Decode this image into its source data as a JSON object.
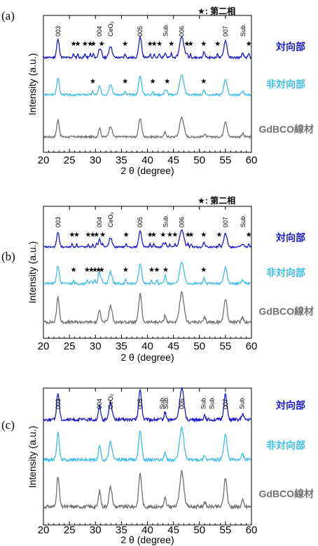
{
  "chart_data": [
    {
      "panel": "(a)",
      "type": "line",
      "legend_note": "★: 第二相",
      "xlabel": "2 θ (degree)",
      "ylabel": "Intensity (a.u.)",
      "xlim": [
        20,
        60
      ],
      "x_ticks": [
        20,
        25,
        30,
        35,
        40,
        45,
        50,
        55,
        60
      ],
      "peak_labels": [
        {
          "x": 22.8,
          "text": "003"
        },
        {
          "x": 30.8,
          "text": "004"
        },
        {
          "x": 32.9,
          "text": "CeO₂"
        },
        {
          "x": 38.6,
          "text": "005"
        },
        {
          "x": 43.5,
          "text": "Sub."
        },
        {
          "x": 46.6,
          "text": "006"
        },
        {
          "x": 55.0,
          "text": "007"
        },
        {
          "x": 58.4,
          "text": "Sub."
        }
      ],
      "series": [
        {
          "name": "対向部",
          "color": "#1a1acc",
          "stars": [
            25.8,
            26.6,
            28.0,
            29.0,
            29.6,
            31.2,
            35.7,
            40.5,
            41.3,
            42.3,
            44.6,
            47.6,
            48.3,
            50.8,
            53.5,
            59.5
          ]
        },
        {
          "name": "非対向部",
          "color": "#3fbde6",
          "stars": [
            29.5,
            35.7,
            41.0,
            43.8,
            50.8
          ]
        },
        {
          "name": "GdBCO線材",
          "color": "#707070",
          "stars": []
        }
      ]
    },
    {
      "panel": "(b)",
      "type": "line",
      "legend_note": "★: 第二相",
      "xlabel": "2 θ (degree)",
      "ylabel": "Intensity (a.u.)",
      "xlim": [
        20,
        60
      ],
      "x_ticks": [
        20,
        25,
        30,
        35,
        40,
        45,
        50,
        55,
        60
      ],
      "peak_labels": [
        {
          "x": 22.8,
          "text": "003"
        },
        {
          "x": 30.8,
          "text": "004"
        },
        {
          "x": 32.9,
          "text": "CeO₂"
        },
        {
          "x": 38.6,
          "text": "005"
        },
        {
          "x": 43.5,
          "text": "Sub."
        },
        {
          "x": 46.6,
          "text": "006"
        },
        {
          "x": 55.0,
          "text": "007"
        },
        {
          "x": 58.4,
          "text": "Sub."
        }
      ],
      "series": [
        {
          "name": "対向部",
          "color": "#1a1acc",
          "stars": [
            25.5,
            26.4,
            28.6,
            29.5,
            30.2,
            31.4,
            35.9,
            40.5,
            41.2,
            43.0,
            44.3,
            45.3,
            47.8,
            48.4,
            50.8,
            53.8,
            59.5
          ]
        },
        {
          "name": "非対向部",
          "color": "#3fbde6",
          "stars": [
            25.8,
            28.4,
            29.2,
            29.9,
            30.6,
            31.2,
            35.8,
            40.8,
            41.8,
            43.5,
            50.8
          ]
        },
        {
          "name": "GdBCO線材",
          "color": "#707070",
          "stars": []
        }
      ]
    },
    {
      "panel": "(c)",
      "type": "line",
      "xlabel": "2 θ (degree)",
      "ylabel": "Intensity (a.u.)",
      "xlim": [
        20,
        60
      ],
      "x_ticks": [
        20,
        25,
        30,
        35,
        40,
        45,
        50,
        55,
        60
      ],
      "peak_labels": [
        {
          "x": 22.8,
          "text": "003"
        },
        {
          "x": 30.8,
          "text": "004"
        },
        {
          "x": 32.9,
          "text": "CeO₂"
        },
        {
          "x": 38.6,
          "text": "005"
        },
        {
          "x": 42.8,
          "text": "Sub."
        },
        {
          "x": 43.6,
          "text": "Sub."
        },
        {
          "x": 46.6,
          "text": "006"
        },
        {
          "x": 50.8,
          "text": "Sub."
        },
        {
          "x": 52.4,
          "text": "Sub."
        },
        {
          "x": 55.0,
          "text": "007"
        },
        {
          "x": 58.2,
          "text": "Sub."
        }
      ],
      "series": [
        {
          "name": "対向部",
          "color": "#1a1acc",
          "stars": []
        },
        {
          "name": "非対向部",
          "color": "#3fbde6",
          "stars": []
        },
        {
          "name": "GdBCO線材",
          "color": "#707070",
          "stars": []
        }
      ]
    }
  ]
}
